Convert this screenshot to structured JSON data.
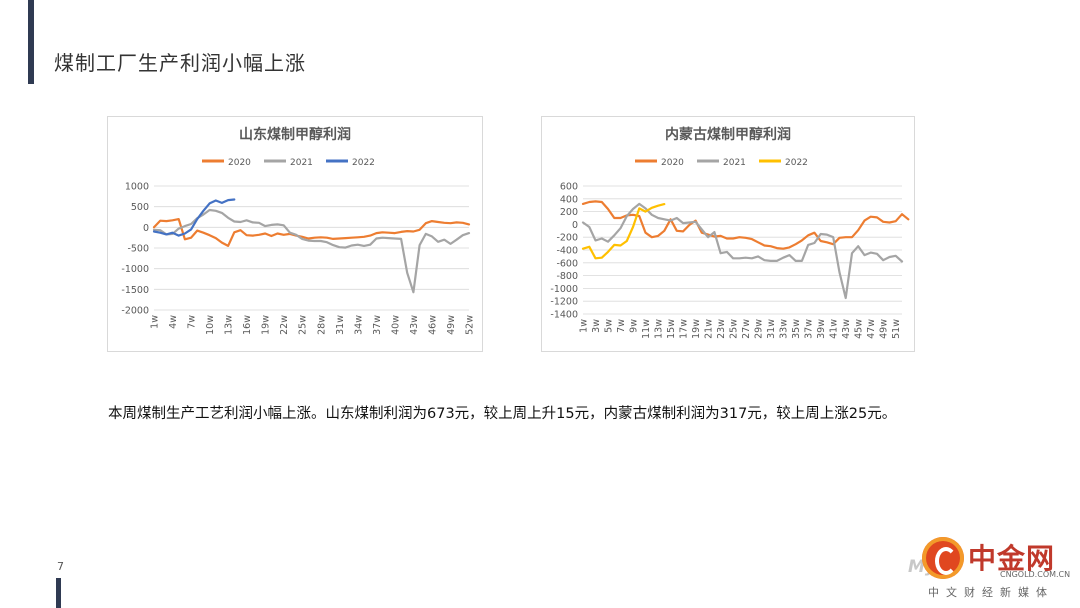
{
  "page": {
    "title": "煤制工厂生产利润小幅上涨",
    "body_text": "本周煤制生产工艺利润小幅上涨。山东煤制利润为673元，较上周上升15元，内蒙古煤制利润为317元，较上周上涨25元。",
    "page_number": "7"
  },
  "logo": {
    "main": "中金网",
    "domain": "CNGOLD.COM.CN",
    "tagline": "中文财经新媒体",
    "watermark": "Mys"
  },
  "colors": {
    "s2020": "#ed7d31",
    "s2021": "#a5a5a5",
    "s2022_sd": "#4472c4",
    "s2022_nm": "#ffc000",
    "accent_bar": "#2f3a52"
  },
  "chart_data": [
    {
      "type": "line",
      "title": "山东煤制甲醇利润",
      "legend_position": "top",
      "x_tick_labels": [
        "1w",
        "4w",
        "7w",
        "10w",
        "13w",
        "16w",
        "19w",
        "22w",
        "25w",
        "28w",
        "31w",
        "34w",
        "37w",
        "40w",
        "43w",
        "46w",
        "49w",
        "52w"
      ],
      "x_range": [
        1,
        52
      ],
      "ylim": [
        -2000,
        1000
      ],
      "yticks": [
        1000,
        500,
        0,
        -500,
        -1000,
        -1500,
        -2000
      ],
      "grid": true,
      "series": [
        {
          "name": "2020",
          "color": "#ed7d31",
          "points": [
            [
              1,
              0
            ],
            [
              2,
              160
            ],
            [
              3,
              150
            ],
            [
              4,
              170
            ],
            [
              5,
              200
            ],
            [
              6,
              -290
            ],
            [
              7,
              -250
            ],
            [
              8,
              -80
            ],
            [
              9,
              -130
            ],
            [
              10,
              -190
            ],
            [
              11,
              -260
            ],
            [
              12,
              -370
            ],
            [
              13,
              -450
            ],
            [
              14,
              -120
            ],
            [
              15,
              -70
            ],
            [
              16,
              -190
            ],
            [
              17,
              -200
            ],
            [
              18,
              -180
            ],
            [
              19,
              -150
            ],
            [
              20,
              -210
            ],
            [
              21,
              -150
            ],
            [
              22,
              -180
            ],
            [
              23,
              -160
            ],
            [
              24,
              -200
            ],
            [
              25,
              -230
            ],
            [
              26,
              -270
            ],
            [
              27,
              -250
            ],
            [
              28,
              -240
            ],
            [
              29,
              -250
            ],
            [
              30,
              -280
            ],
            [
              31,
              -270
            ],
            [
              32,
              -260
            ],
            [
              33,
              -250
            ],
            [
              34,
              -240
            ],
            [
              35,
              -230
            ],
            [
              36,
              -200
            ],
            [
              37,
              -140
            ],
            [
              38,
              -120
            ],
            [
              39,
              -130
            ],
            [
              40,
              -140
            ],
            [
              41,
              -110
            ],
            [
              42,
              -90
            ],
            [
              43,
              -100
            ],
            [
              44,
              -60
            ],
            [
              45,
              100
            ],
            [
              46,
              150
            ],
            [
              47,
              130
            ],
            [
              48,
              110
            ],
            [
              49,
              100
            ],
            [
              50,
              120
            ],
            [
              51,
              110
            ],
            [
              52,
              70
            ]
          ]
        },
        {
          "name": "2021",
          "color": "#a5a5a5",
          "points": [
            [
              1,
              -60
            ],
            [
              2,
              -70
            ],
            [
              3,
              -170
            ],
            [
              4,
              -160
            ],
            [
              5,
              -30
            ],
            [
              6,
              30
            ],
            [
              7,
              80
            ],
            [
              8,
              220
            ],
            [
              9,
              310
            ],
            [
              10,
              420
            ],
            [
              11,
              400
            ],
            [
              12,
              350
            ],
            [
              13,
              230
            ],
            [
              14,
              140
            ],
            [
              15,
              130
            ],
            [
              16,
              170
            ],
            [
              17,
              120
            ],
            [
              18,
              110
            ],
            [
              19,
              30
            ],
            [
              20,
              60
            ],
            [
              21,
              70
            ],
            [
              22,
              50
            ],
            [
              23,
              -130
            ],
            [
              24,
              -180
            ],
            [
              25,
              -280
            ],
            [
              26,
              -320
            ],
            [
              27,
              -330
            ],
            [
              28,
              -330
            ],
            [
              29,
              -360
            ],
            [
              30,
              -430
            ],
            [
              31,
              -480
            ],
            [
              32,
              -490
            ],
            [
              33,
              -440
            ],
            [
              34,
              -420
            ],
            [
              35,
              -450
            ],
            [
              36,
              -420
            ],
            [
              37,
              -270
            ],
            [
              38,
              -250
            ],
            [
              39,
              -260
            ],
            [
              40,
              -270
            ],
            [
              41,
              -280
            ],
            [
              42,
              -1100
            ],
            [
              43,
              -1570
            ],
            [
              44,
              -430
            ],
            [
              45,
              -160
            ],
            [
              46,
              -220
            ],
            [
              47,
              -350
            ],
            [
              48,
              -300
            ],
            [
              49,
              -400
            ],
            [
              50,
              -300
            ],
            [
              51,
              -190
            ],
            [
              52,
              -140
            ]
          ]
        },
        {
          "name": "2022",
          "color": "#4472c4",
          "points": [
            [
              1,
              -100
            ],
            [
              2,
              -130
            ],
            [
              3,
              -170
            ],
            [
              4,
              -130
            ],
            [
              5,
              -200
            ],
            [
              6,
              -150
            ],
            [
              7,
              -50
            ],
            [
              8,
              200
            ],
            [
              9,
              400
            ],
            [
              10,
              580
            ],
            [
              11,
              650
            ],
            [
              12,
              590
            ],
            [
              13,
              658
            ],
            [
              14,
              673
            ]
          ]
        }
      ]
    },
    {
      "type": "line",
      "title": "内蒙古煤制甲醇利润",
      "legend_position": "top",
      "x_tick_labels": [
        "1w",
        "3w",
        "5w",
        "7w",
        "9w",
        "11w",
        "13w",
        "15w",
        "17w",
        "19w",
        "21w",
        "23w",
        "25w",
        "27w",
        "29w",
        "31w",
        "33w",
        "35w",
        "37w",
        "39w",
        "41w",
        "43w",
        "45w",
        "47w",
        "49w",
        "51w"
      ],
      "x_range": [
        1,
        52
      ],
      "ylim": [
        -1400,
        600
      ],
      "yticks": [
        600,
        400,
        200,
        0,
        -200,
        -400,
        -600,
        -800,
        -1000,
        -1200,
        -1400
      ],
      "grid": true,
      "series": [
        {
          "name": "2020",
          "color": "#ed7d31",
          "points": [
            [
              1,
              320
            ],
            [
              2,
              350
            ],
            [
              3,
              360
            ],
            [
              4,
              350
            ],
            [
              5,
              240
            ],
            [
              6,
              100
            ],
            [
              7,
              100
            ],
            [
              8,
              140
            ],
            [
              9,
              150
            ],
            [
              10,
              130
            ],
            [
              11,
              -130
            ],
            [
              12,
              -200
            ],
            [
              13,
              -180
            ],
            [
              14,
              -100
            ],
            [
              15,
              80
            ],
            [
              16,
              -100
            ],
            [
              17,
              -110
            ],
            [
              18,
              -10
            ],
            [
              19,
              60
            ],
            [
              20,
              -130
            ],
            [
              21,
              -160
            ],
            [
              22,
              -190
            ],
            [
              23,
              -180
            ],
            [
              24,
              -220
            ],
            [
              25,
              -220
            ],
            [
              26,
              -200
            ],
            [
              27,
              -210
            ],
            [
              28,
              -230
            ],
            [
              29,
              -280
            ],
            [
              30,
              -330
            ],
            [
              31,
              -340
            ],
            [
              32,
              -370
            ],
            [
              33,
              -380
            ],
            [
              34,
              -360
            ],
            [
              35,
              -310
            ],
            [
              36,
              -250
            ],
            [
              37,
              -170
            ],
            [
              38,
              -130
            ],
            [
              39,
              -260
            ],
            [
              40,
              -280
            ],
            [
              41,
              -310
            ],
            [
              42,
              -210
            ],
            [
              43,
              -200
            ],
            [
              44,
              -200
            ],
            [
              45,
              -90
            ],
            [
              46,
              60
            ],
            [
              47,
              120
            ],
            [
              48,
              110
            ],
            [
              49,
              40
            ],
            [
              50,
              30
            ],
            [
              51,
              50
            ],
            [
              52,
              160
            ],
            [
              53,
              80
            ]
          ]
        },
        {
          "name": "2021",
          "color": "#a5a5a5",
          "points": [
            [
              1,
              30
            ],
            [
              2,
              -40
            ],
            [
              3,
              -250
            ],
            [
              4,
              -220
            ],
            [
              5,
              -270
            ],
            [
              6,
              -170
            ],
            [
              7,
              -60
            ],
            [
              8,
              130
            ],
            [
              9,
              240
            ],
            [
              10,
              320
            ],
            [
              11,
              250
            ],
            [
              12,
              150
            ],
            [
              13,
              100
            ],
            [
              14,
              80
            ],
            [
              15,
              60
            ],
            [
              16,
              100
            ],
            [
              17,
              20
            ],
            [
              18,
              30
            ],
            [
              19,
              40
            ],
            [
              20,
              -80
            ],
            [
              21,
              -200
            ],
            [
              22,
              -120
            ],
            [
              23,
              -450
            ],
            [
              24,
              -430
            ],
            [
              25,
              -530
            ],
            [
              26,
              -530
            ],
            [
              27,
              -520
            ],
            [
              28,
              -530
            ],
            [
              29,
              -500
            ],
            [
              30,
              -560
            ],
            [
              31,
              -570
            ],
            [
              32,
              -570
            ],
            [
              33,
              -520
            ],
            [
              34,
              -480
            ],
            [
              35,
              -570
            ],
            [
              36,
              -570
            ],
            [
              37,
              -320
            ],
            [
              38,
              -290
            ],
            [
              39,
              -150
            ],
            [
              40,
              -160
            ],
            [
              41,
              -200
            ],
            [
              42,
              -750
            ],
            [
              43,
              -1150
            ],
            [
              44,
              -450
            ],
            [
              45,
              -340
            ],
            [
              46,
              -480
            ],
            [
              47,
              -440
            ],
            [
              48,
              -460
            ],
            [
              49,
              -560
            ],
            [
              50,
              -510
            ],
            [
              51,
              -490
            ],
            [
              52,
              -580
            ]
          ]
        },
        {
          "name": "2022",
          "color": "#ffc000",
          "points": [
            [
              1,
              -380
            ],
            [
              2,
              -350
            ],
            [
              3,
              -530
            ],
            [
              4,
              -520
            ],
            [
              5,
              -430
            ],
            [
              6,
              -320
            ],
            [
              7,
              -330
            ],
            [
              8,
              -260
            ],
            [
              9,
              -40
            ],
            [
              10,
              250
            ],
            [
              11,
              200
            ],
            [
              12,
              260
            ],
            [
              13,
              292
            ],
            [
              14,
              317
            ]
          ]
        }
      ]
    }
  ]
}
